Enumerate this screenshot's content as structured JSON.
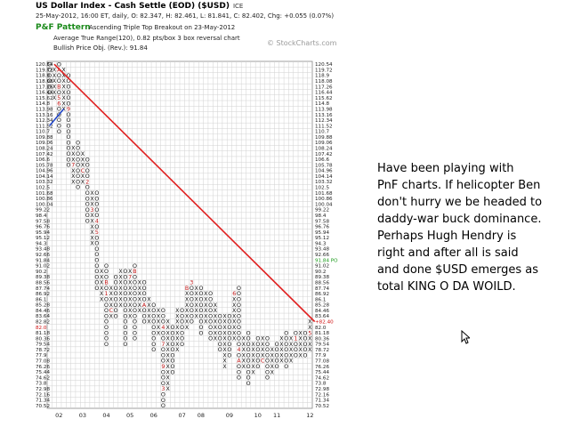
{
  "header": {
    "title": "US Dollar Index - Cash Settle (EOD) ($USD)",
    "exchange": "ICE",
    "ohlc": "25-May-2012, 16:00 ET, daily, O: 82.347, H: 82.461, L: 81.841, C: 82.402, Chg: +0.055 (0.07%)",
    "pattern_name": "P&F Pattern",
    "pattern_note": "Ascending Triple Top Breakout on 23-May-2012",
    "atr": "Average True Range(120), 0.82 pts/box 3 box reversal chart",
    "bpo": "Bullish Price Obj. (Rev.): 91.84",
    "copyright": "© StockCharts.com"
  },
  "chart_data": {
    "type": "point-and-figure",
    "price_levels": [
      "120.54",
      "119.72",
      "118.9",
      "118.08",
      "117.26",
      "116.44",
      "115.62",
      "114.8",
      "113.98",
      "113.16",
      "112.34",
      "111.52",
      "110.7",
      "109.88",
      "109.06",
      "108.24",
      "107.42",
      "106.6",
      "105.78",
      "104.96",
      "104.14",
      "103.32",
      "102.5",
      "101.68",
      "100.86",
      "100.04",
      "99.22",
      "98.4",
      "97.58",
      "96.76",
      "95.94",
      "95.12",
      "94.3",
      "93.48",
      "92.66",
      "91.84",
      "91.02",
      "90.2",
      "89.38",
      "88.56",
      "87.74",
      "86.92",
      "86.1",
      "85.28",
      "84.46",
      "83.64",
      "82.82",
      "82.0",
      "81.18",
      "80.36",
      "79.54",
      "78.72",
      "77.9",
      "77.08",
      "76.26",
      "75.44",
      "74.62",
      "73.8",
      "72.98",
      "72.16",
      "71.34",
      "70.52"
    ],
    "left_labels": [
      "120.54",
      "119.72",
      "118.9",
      "118.08",
      "117.26",
      "116.44",
      "115.62",
      "114.8",
      "113.98",
      "113.16",
      "112.34",
      "111.52",
      "110.7",
      "109.88",
      "109.06",
      "108.24",
      "107.42",
      "106.6",
      "105.78",
      "104.96",
      "104.14",
      "103.32",
      "102.5",
      "101.68",
      "100.86",
      "100.04",
      "99.22",
      "98.4",
      "97.58",
      "96.76",
      "95.94",
      "95.12",
      "94.3",
      "93.48",
      "92.66",
      "91.84",
      "91.02",
      "90.2",
      "89.38",
      "88.56",
      "87.74",
      "86.92",
      "86.1",
      "85.28",
      "84.46",
      "83.64",
      "82.82",
      "82.0",
      "81.18",
      "80.36",
      "79.54",
      "78.72",
      "77.9",
      "77.08",
      "76.26",
      "75.44",
      "74.62",
      "73.8",
      "72.98",
      "72.16",
      "71.34",
      "70.52"
    ],
    "right_labels": [
      "120.54",
      "119.72",
      "118.9",
      "118.08",
      "117.26",
      "116.44",
      "115.62",
      "114.8",
      "113.98",
      "113.16",
      "112.34",
      "111.52",
      "110.7",
      "109.88",
      "109.06",
      "108.24",
      "107.42",
      "106.6",
      "105.78",
      "104.96",
      "104.14",
      "103.32",
      "102.5",
      "101.68",
      "100.86",
      "100.04",
      "99.22",
      "98.4",
      "97.58",
      "96.76",
      "95.94",
      "95.12",
      "94.3",
      "93.48",
      "92.66",
      "91.84 PO",
      "91.02",
      "90.2",
      "89.38",
      "88.56",
      "87.74",
      "86.92",
      "86.1",
      "85.28",
      "84.46",
      "83.64",
      "+82.40",
      "82.0",
      "81.18",
      "80.36",
      "79.54",
      "78.72",
      "77.9",
      "77.08",
      "76.26",
      "75.44",
      "74.62",
      "73.8",
      "72.98",
      "72.16",
      "71.34",
      "70.52"
    ],
    "left_highlight": "82.0",
    "right_highlight": "+82.40",
    "price_objective_label": "91.84 PO",
    "x_axis_labels": [
      "02",
      "03",
      "04",
      "05",
      "06",
      "07",
      "08",
      "09",
      "10",
      "11",
      "12"
    ],
    "x_axis_label_columns": [
      2,
      7,
      12,
      17,
      22,
      28,
      32,
      38,
      44,
      48,
      55
    ],
    "columns": [
      {
        "type": "O",
        "top": "120.54",
        "bottom": "116.44"
      },
      {
        "type": "X",
        "top": "119.72",
        "bottom": "115.62"
      },
      {
        "type": "O",
        "top": "120.54",
        "bottom": "110.7"
      },
      {
        "type": "X",
        "top": "119.72",
        "bottom": "113.98"
      },
      {
        "type": "O",
        "top": "118.9",
        "bottom": "105.78"
      },
      {
        "type": "X",
        "top": "108.24",
        "bottom": "103.32"
      },
      {
        "type": "O",
        "top": "109.06",
        "bottom": "102.5"
      },
      {
        "type": "X",
        "top": "107.42",
        "bottom": "103.32"
      },
      {
        "type": "O",
        "top": "106.6",
        "bottom": "97.58"
      },
      {
        "type": "X",
        "top": "101.68",
        "bottom": "94.3"
      },
      {
        "type": "O",
        "top": "101.68",
        "bottom": "87.74"
      },
      {
        "type": "X",
        "top": "90.2",
        "bottom": "86.1"
      },
      {
        "type": "O",
        "top": "91.02",
        "bottom": "79.54"
      },
      {
        "type": "X",
        "top": "87.74",
        "bottom": "83.64"
      },
      {
        "type": "O",
        "top": "89.38",
        "bottom": "83.64"
      },
      {
        "type": "X",
        "top": "90.2",
        "bottom": "85.28"
      },
      {
        "type": "O",
        "top": "90.2",
        "bottom": "79.54"
      },
      {
        "type": "X",
        "top": "90.2",
        "bottom": "83.64"
      },
      {
        "type": "O",
        "top": "91.02",
        "bottom": "80.36"
      },
      {
        "type": "X",
        "top": "88.56",
        "bottom": "84.46"
      },
      {
        "type": "O",
        "top": "88.56",
        "bottom": "82.82"
      },
      {
        "type": "X",
        "top": "86.1",
        "bottom": "82.82"
      },
      {
        "type": "O",
        "top": "85.28",
        "bottom": "78.72"
      },
      {
        "type": "X",
        "top": "84.46",
        "bottom": "81.18"
      },
      {
        "type": "O",
        "top": "84.46",
        "bottom": "70.52"
      },
      {
        "type": "X",
        "top": "82.82",
        "bottom": "72.98"
      },
      {
        "type": "O",
        "top": "82.0",
        "bottom": "75.44"
      },
      {
        "type": "X",
        "top": "84.46",
        "bottom": "78.72"
      },
      {
        "type": "O",
        "top": "84.46",
        "bottom": "79.54"
      },
      {
        "type": "X",
        "top": "87.74",
        "bottom": "82.0"
      },
      {
        "type": "O",
        "top": "88.56",
        "bottom": "82.82"
      },
      {
        "type": "X",
        "top": "87.74",
        "bottom": "83.64"
      },
      {
        "type": "O",
        "top": "87.74",
        "bottom": "81.18"
      },
      {
        "type": "X",
        "top": "86.92",
        "bottom": "82.82"
      },
      {
        "type": "O",
        "top": "86.92",
        "bottom": "80.36"
      },
      {
        "type": "X",
        "top": "85.28",
        "bottom": "80.36"
      },
      {
        "type": "O",
        "top": "83.64",
        "bottom": "78.72"
      },
      {
        "type": "X",
        "top": "83.64",
        "bottom": "76.26"
      },
      {
        "type": "O",
        "top": "83.64",
        "bottom": "77.9"
      },
      {
        "type": "X",
        "top": "86.92",
        "bottom": "80.36"
      },
      {
        "type": "O",
        "top": "87.74",
        "bottom": "74.62"
      },
      {
        "type": "X",
        "top": "80.36",
        "bottom": "76.26"
      },
      {
        "type": "O",
        "top": "81.18",
        "bottom": "73.8"
      },
      {
        "type": "X",
        "top": "79.54",
        "bottom": "75.44"
      },
      {
        "type": "O",
        "top": "80.36",
        "bottom": "76.26"
      },
      {
        "type": "X",
        "top": "80.36",
        "bottom": "77.08"
      },
      {
        "type": "O",
        "top": "80.36",
        "bottom": "74.62"
      },
      {
        "type": "X",
        "top": "78.72",
        "bottom": "75.44"
      },
      {
        "type": "O",
        "top": "79.54",
        "bottom": "76.26"
      },
      {
        "type": "X",
        "top": "80.36",
        "bottom": "77.08"
      },
      {
        "type": "O",
        "top": "81.18",
        "bottom": "76.26"
      },
      {
        "type": "X",
        "top": "80.36",
        "bottom": "77.08"
      },
      {
        "type": "O",
        "top": "81.18",
        "bottom": "77.9"
      },
      {
        "type": "X",
        "top": "81.18",
        "bottom": "77.9"
      },
      {
        "type": "O",
        "top": "81.18",
        "bottom": "77.9"
      },
      {
        "type": "X",
        "top": "82.82",
        "bottom": "78.72"
      }
    ],
    "month_markers": [
      {
        "col": 2,
        "price": "119.72",
        "label": "A"
      },
      {
        "col": 2,
        "price": "117.26",
        "label": "B"
      },
      {
        "col": 2,
        "price": "115.62",
        "label": "5"
      },
      {
        "col": 2,
        "price": "114.8",
        "label": "6"
      },
      {
        "col": 4,
        "price": "113.98",
        "label": "9"
      },
      {
        "col": 5,
        "price": "105.78",
        "label": "7"
      },
      {
        "col": 7,
        "price": "104.96",
        "label": "C"
      },
      {
        "col": 8,
        "price": "103.32",
        "label": "2"
      },
      {
        "col": 9,
        "price": "99.22",
        "label": "3"
      },
      {
        "col": 10,
        "price": "97.58",
        "label": "4"
      },
      {
        "col": 10,
        "price": "95.94",
        "label": "5"
      },
      {
        "col": 12,
        "price": "88.56",
        "label": "B"
      },
      {
        "col": 12,
        "price": "86.92",
        "label": "1"
      },
      {
        "col": 13,
        "price": "84.46",
        "label": "C"
      },
      {
        "col": 17,
        "price": "89.38",
        "label": "7"
      },
      {
        "col": 18,
        "price": "90.2",
        "label": "B"
      },
      {
        "col": 20,
        "price": "85.28",
        "label": "A"
      },
      {
        "col": 24,
        "price": "82.0",
        "label": "4"
      },
      {
        "col": 24,
        "price": "79.54",
        "label": "7"
      },
      {
        "col": 24,
        "price": "76.26",
        "label": "9"
      },
      {
        "col": 24,
        "price": "72.98",
        "label": "3"
      },
      {
        "col": 29,
        "price": "87.74",
        "label": "B"
      },
      {
        "col": 30,
        "price": "88.56",
        "label": "3"
      },
      {
        "col": 39,
        "price": "86.92",
        "label": "6"
      },
      {
        "col": 40,
        "price": "78.72",
        "label": "4"
      },
      {
        "col": 40,
        "price": "77.08",
        "label": "A"
      },
      {
        "col": 45,
        "price": "77.08",
        "label": "C"
      },
      {
        "col": 52,
        "price": "80.36",
        "label": "1"
      },
      {
        "col": 55,
        "price": "81.18",
        "label": "5"
      }
    ],
    "trend_lines": [
      {
        "kind": "bearish_resistance",
        "color": "#e02020",
        "from": {
          "col": 1,
          "price": "120.54"
        },
        "to": {
          "col": 56,
          "price": "82.82"
        }
      },
      {
        "kind": "support_segment",
        "color": "#1a40c8",
        "from": {
          "col": 0,
          "price": "111.52"
        },
        "to": {
          "col": 3,
          "price": "113.98"
        }
      }
    ],
    "x_count": 56,
    "grid": true
  },
  "commentary": {
    "lines": [
      "Have been playing with",
      "PnF charts. If helicopter Ben",
      "don't hurry we be headed to",
      "daddy-war buck dominance.",
      "Perhaps Hugh Hendry is",
      "right and after all is said",
      "and done $USD emerges as",
      "total KING O DA WOILD."
    ]
  },
  "cursor": {
    "icon": "mouse-pointer-icon"
  }
}
